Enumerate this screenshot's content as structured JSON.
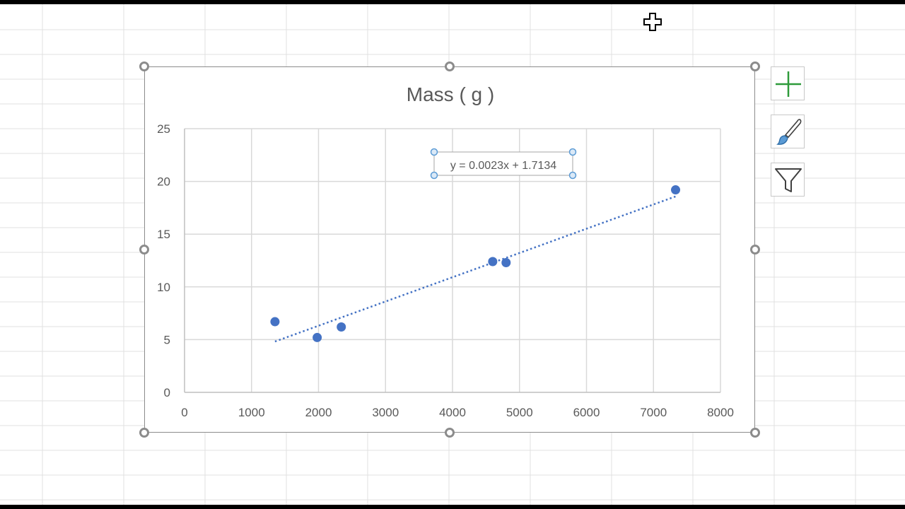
{
  "chart_data": {
    "type": "scatter",
    "title": "Mass ( g )",
    "xlabel": "",
    "ylabel": "",
    "xlim": [
      0,
      8000
    ],
    "ylim": [
      0,
      25
    ],
    "x_ticks": [
      0,
      1000,
      2000,
      3000,
      4000,
      5000,
      6000,
      7000,
      8000
    ],
    "y_ticks": [
      0,
      5,
      10,
      15,
      20,
      25
    ],
    "grid": true,
    "legend": "none",
    "series": [
      {
        "points": [
          {
            "x": 1350,
            "y": 6.7
          },
          {
            "x": 1980,
            "y": 5.2
          },
          {
            "x": 2340,
            "y": 6.2
          },
          {
            "x": 4600,
            "y": 12.4
          },
          {
            "x": 4800,
            "y": 12.3
          },
          {
            "x": 7330,
            "y": 19.2
          }
        ],
        "color": "#4472c4"
      }
    ],
    "trendline": {
      "type": "linear",
      "slope": 0.0023,
      "intercept": 1.7134,
      "x_range": [
        1350,
        7330
      ],
      "style": "dotted",
      "color": "#4472c4",
      "equation_label": "y = 0.0023x + 1.7134"
    }
  },
  "colors": {
    "series": "#4472c4",
    "gridline": "#d9d9d9",
    "axis_text": "#595959",
    "sheet_grid": "#e1e1e1",
    "selection": "#5b9bd5",
    "plus_icon": "#2e9a3a"
  },
  "side_buttons": [
    {
      "name": "chart-elements-button",
      "icon": "plus-icon"
    },
    {
      "name": "chart-styles-button",
      "icon": "paintbrush-icon"
    },
    {
      "name": "chart-filters-button",
      "icon": "funnel-icon"
    }
  ],
  "cursor": {
    "icon": "move-cursor-icon"
  }
}
